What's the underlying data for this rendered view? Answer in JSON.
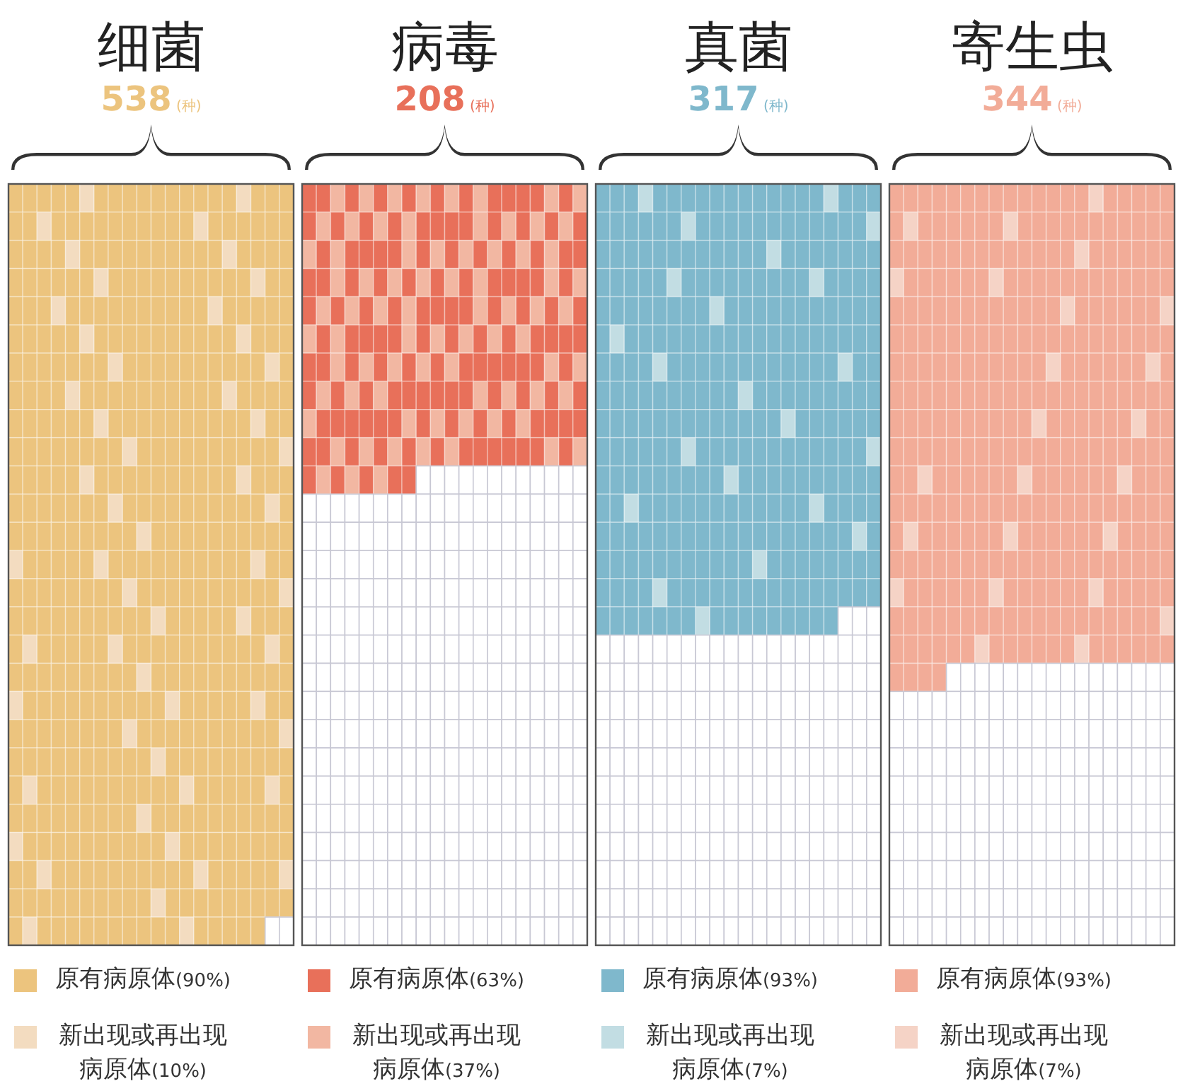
{
  "chart_data": {
    "type": "other",
    "categories": [
      "细菌",
      "病毒",
      "真菌",
      "寄生虫"
    ],
    "values": [
      538,
      208,
      317,
      344
    ],
    "value_labels": [
      "538(种)",
      "208(种)",
      "317(种)",
      "344(种)"
    ],
    "series": [
      {
        "name": "原有病原体",
        "colors": [
          "#ecc47e",
          "#e8705a",
          "#7fb8cc",
          "#f2ac98"
        ],
        "values": [
          90,
          63,
          93,
          93
        ],
        "value_labels": [
          "(90%)",
          "(63%)",
          "(93%)",
          "(93%)"
        ]
      },
      {
        "name": "新出现或再出现病原体",
        "colors": [
          "#f3dcc0",
          "#f2b7a2",
          "#c2dde3",
          "#f5d3c6"
        ],
        "values": [
          10,
          37,
          7,
          7
        ],
        "value_labels": [
          "(10%)",
          "(37%)",
          "(7%)",
          "(7%)"
        ]
      }
    ],
    "legend": "bottom"
  }
}
